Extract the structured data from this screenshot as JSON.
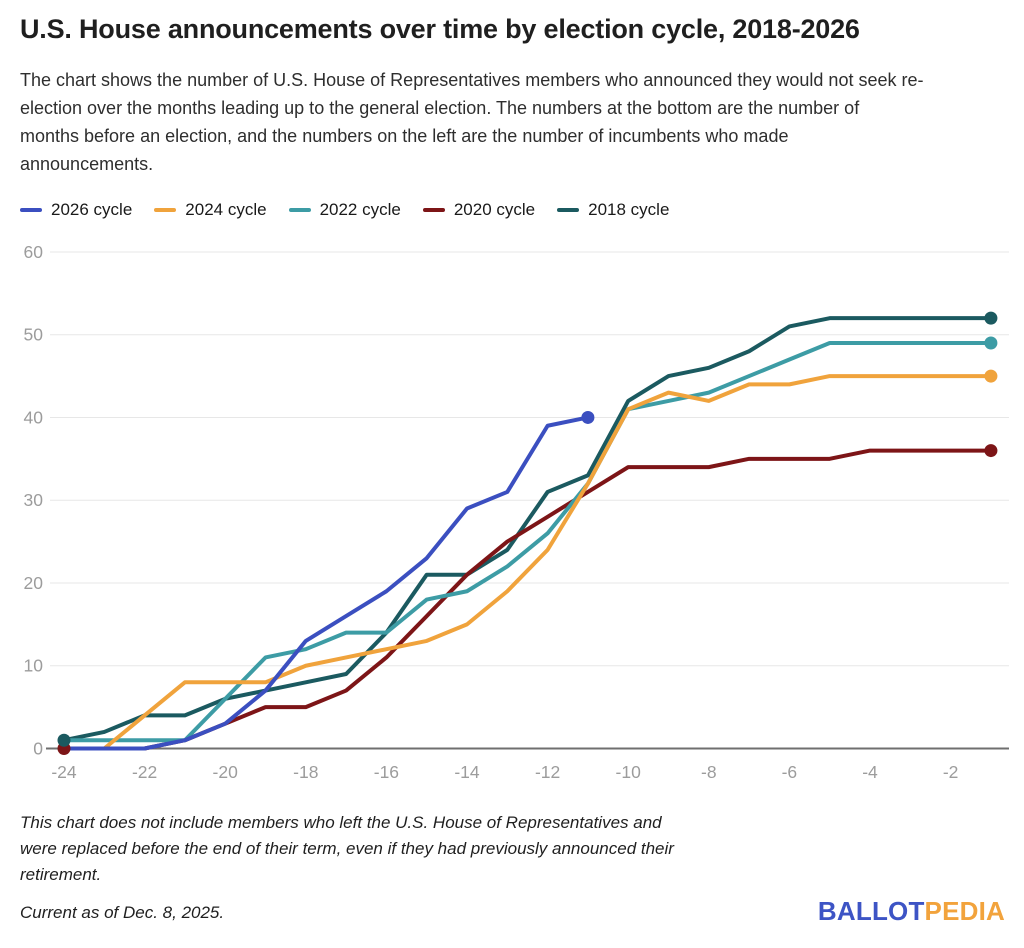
{
  "header": {
    "title": "U.S. House announcements over time by election cycle, 2018-2026",
    "subtitle_lines": [
      "The chart shows the number of U.S. House of Representatives members who announced they would not seek re-",
      "election over the months leading up to the general election. The numbers at the bottom are the number of",
      "months before an election, and the numbers on the left are the number of incumbents who made",
      "announcements."
    ]
  },
  "chart_data": {
    "type": "line",
    "title": "U.S. House announcements over time by election cycle, 2018-2026",
    "xlabel": "months before an election",
    "ylabel": "number of incumbents who made announcements",
    "xlim": [
      -24,
      -1
    ],
    "ylim": [
      0,
      60
    ],
    "y_ticks": [
      0,
      10,
      20,
      30,
      40,
      50,
      60
    ],
    "x_label_ticks": [
      -24,
      -22,
      -20,
      -18,
      -16,
      -14,
      -12,
      -10,
      -8,
      -6,
      -4,
      -2
    ],
    "grid": "horizontal",
    "legend_position": "top",
    "x": [
      -24,
      -23,
      -22,
      -21,
      -20,
      -19,
      -18,
      -17,
      -16,
      -15,
      -14,
      -13,
      -12,
      -11,
      -10,
      -9,
      -8,
      -7,
      -6,
      -5,
      -4,
      -3,
      -2,
      -1
    ],
    "series": [
      {
        "name": "2026 cycle",
        "color": "#3B4FC0",
        "start_dot": false,
        "end_dot": true,
        "values": [
          0,
          0,
          0,
          1,
          3,
          7,
          13,
          16,
          19,
          23,
          29,
          31,
          39,
          40,
          null,
          null,
          null,
          null,
          null,
          null,
          null,
          null,
          null,
          null
        ]
      },
      {
        "name": "2024 cycle",
        "color": "#F0A33C",
        "start_dot": false,
        "end_dot": true,
        "values": [
          0,
          0,
          4,
          8,
          8,
          8,
          10,
          11,
          12,
          13,
          15,
          19,
          24,
          32,
          41,
          43,
          42,
          44,
          44,
          45,
          45,
          45,
          45,
          45
        ]
      },
      {
        "name": "2022 cycle",
        "color": "#3D9CA5",
        "start_dot": false,
        "end_dot": true,
        "values": [
          1,
          1,
          1,
          1,
          6,
          11,
          12,
          14,
          14,
          18,
          19,
          22,
          26,
          32,
          41,
          42,
          43,
          45,
          47,
          49,
          49,
          49,
          49,
          49
        ]
      },
      {
        "name": "2020 cycle",
        "color": "#7D1517",
        "start_dot": true,
        "end_dot": true,
        "values": [
          0,
          0,
          0,
          1,
          3,
          5,
          5,
          7,
          11,
          16,
          21,
          25,
          28,
          31,
          34,
          34,
          34,
          35,
          35,
          35,
          36,
          36,
          36,
          36
        ]
      },
      {
        "name": "2018 cycle",
        "color": "#1B5A60",
        "start_dot": true,
        "end_dot": true,
        "values": [
          1,
          2,
          4,
          4,
          6,
          7,
          8,
          9,
          14,
          21,
          21,
          24,
          31,
          33,
          42,
          45,
          46,
          48,
          51,
          52,
          52,
          52,
          52,
          52
        ]
      }
    ],
    "axis_colors": {
      "tick_label": "#9C9C9C",
      "gridline": "#E7E7E7",
      "zero_axis": "#6F6F6F"
    }
  },
  "footnote": {
    "lines": [
      "This chart does not include members who left the U.S. House of Representatives and",
      "were replaced before the end of their term, even if they had previously announced their",
      "retirement."
    ],
    "current": "Current as of Dec. 8, 2025."
  },
  "footer": {
    "logo": {
      "part1": "BALLOT",
      "part1_color": "#3D54C5",
      "part2": "PEDIA",
      "part2_color": "#F2A33C"
    }
  }
}
